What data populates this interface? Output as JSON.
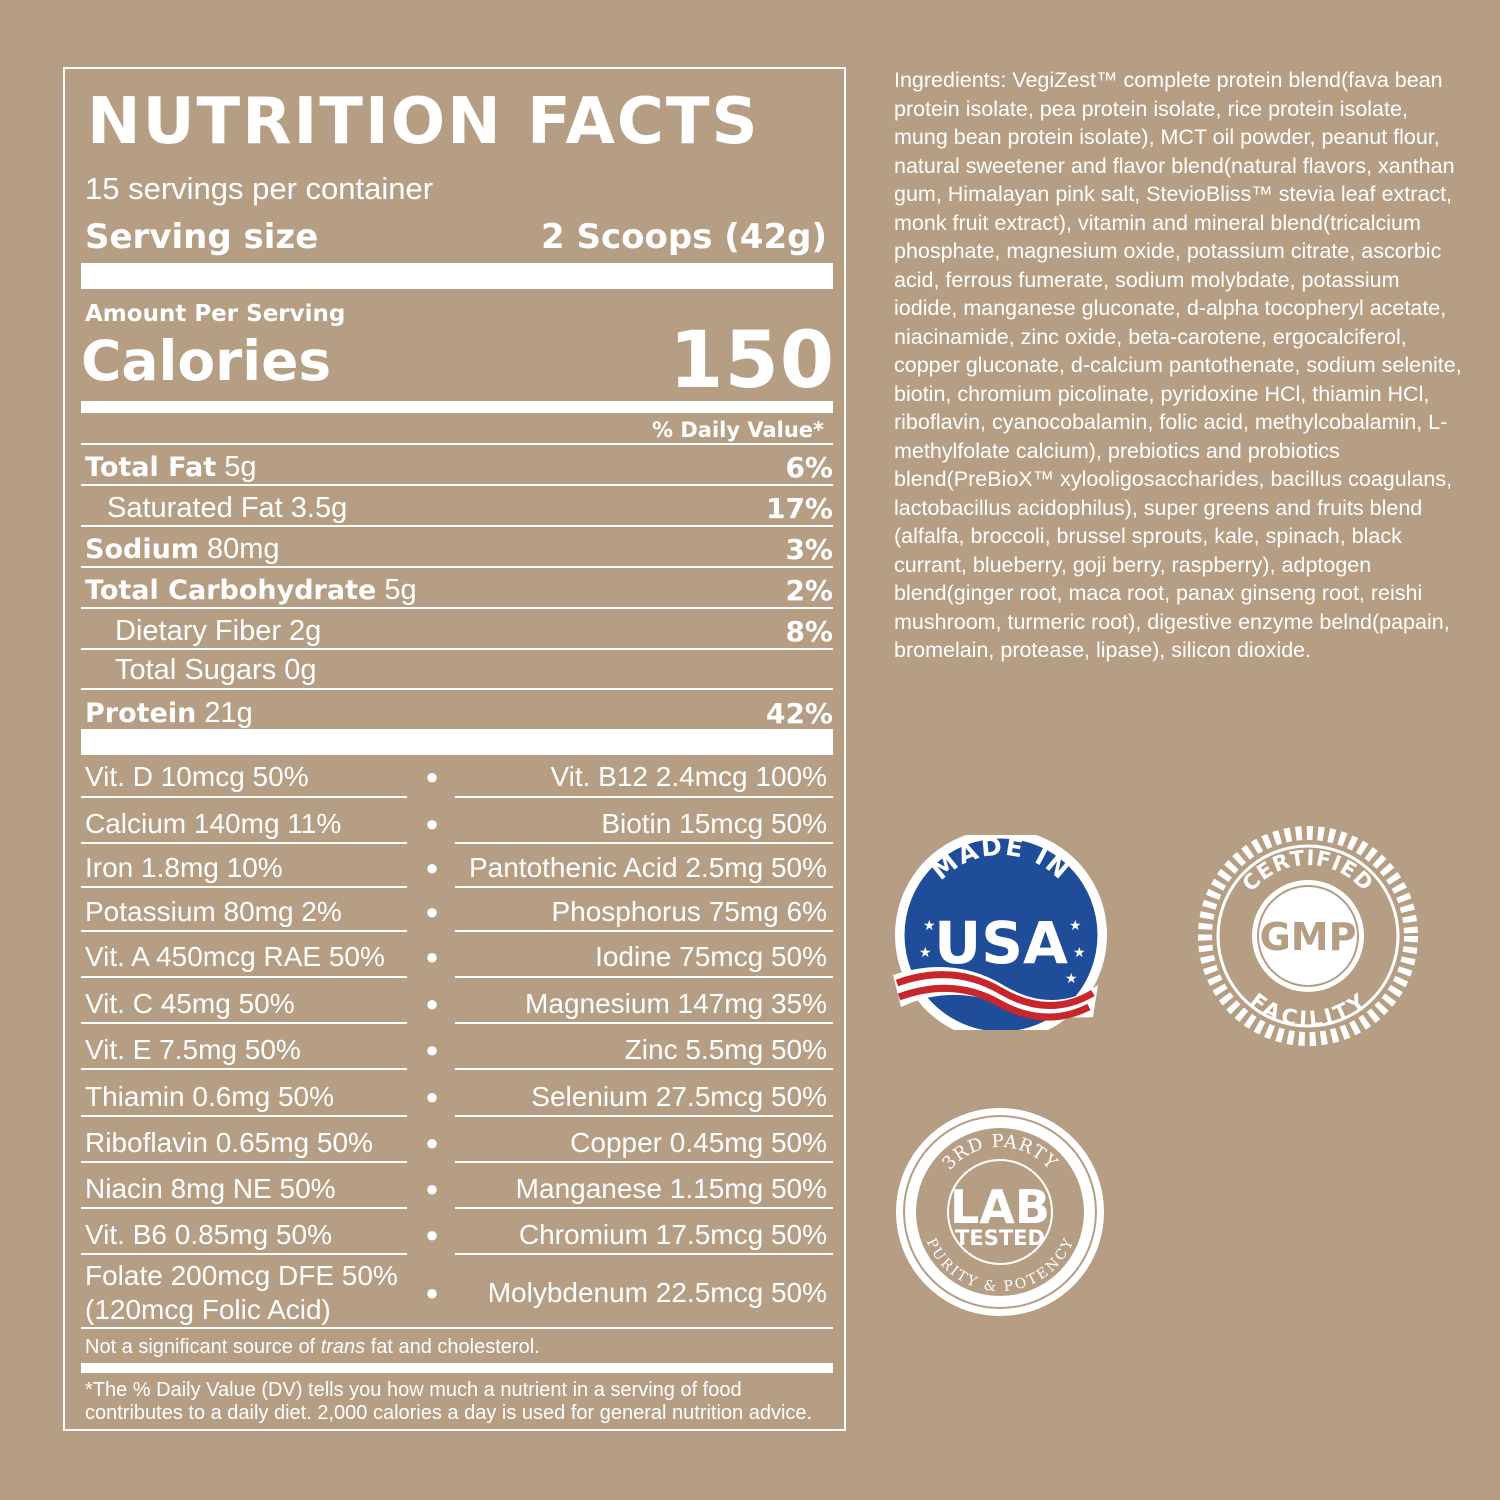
{
  "label": {
    "title": "NUTRITION FACTS",
    "servings_per_container": "15 servings per container",
    "serving_size_label": "Serving size",
    "serving_size_value": "2 Scoops (42g)",
    "amount_per_serving": "Amount Per Serving",
    "calories_label": "Calories",
    "calories_value": "150",
    "daily_value_header": "% Daily Value*",
    "nutrients": [
      {
        "name": "Total Fat",
        "amount": "5g",
        "dv": "6%"
      },
      {
        "name": "Saturated Fat 3.5g",
        "amount": "",
        "dv": "17%"
      },
      {
        "name": "Sodium",
        "amount": "80mg",
        "dv": "3%"
      },
      {
        "name": "Total Carbohydrate",
        "amount": "5g",
        "dv": "2%"
      },
      {
        "name": "Dietary Fiber 2g",
        "amount": "",
        "dv": "8%"
      },
      {
        "name": "Total Sugars 0g",
        "amount": "",
        "dv": ""
      },
      {
        "name": "Protein",
        "amount": "21g",
        "dv": "42%"
      }
    ],
    "vitamins": [
      {
        "left": "Vit. D 10mcg 50%",
        "bullet": "●",
        "right": "Vit. B12 2.4mcg 100%"
      },
      {
        "left": "Calcium 140mg 11%",
        "bullet": "●",
        "right": "Biotin 15mcg 50%"
      },
      {
        "left": "Iron 1.8mg 10%",
        "bullet": "●",
        "right": "Pantothenic Acid 2.5mg 50%"
      },
      {
        "left": "Potassium 80mg 2%",
        "bullet": "●",
        "right": "Phosphorus 75mg 6%"
      },
      {
        "left": "Vit. A 450mcg RAE 50%",
        "bullet": "●",
        "right": "Iodine 75mcg 50%"
      },
      {
        "left": "Vit. C 45mg 50%",
        "bullet": "●",
        "right": "Magnesium 147mg 35%"
      },
      {
        "left": "Vit. E 7.5mg 50%",
        "bullet": "●",
        "right": "Zinc 5.5mg 50%"
      },
      {
        "left": "Thiamin 0.6mg 50%",
        "bullet": "●",
        "right": "Selenium 27.5mcg 50%"
      },
      {
        "left": "Riboflavin 0.65mg 50%",
        "bullet": "●",
        "right": "Copper 0.45mg 50%"
      },
      {
        "left": "Niacin 8mg NE 50%",
        "bullet": "●",
        "right": "Manganese 1.15mg 50%"
      },
      {
        "left": "Vit. B6 0.85mg 50%",
        "bullet": "●",
        "right": "Chromium 17.5mcg 50%"
      }
    ],
    "folate_line1": "Folate 200mcg DFE 50%",
    "folate_line2": "(120mcg Folic Acid)",
    "molybdenum": "Molybdenum 22.5mcg 50%",
    "bullet": "●",
    "trans_before": "Not a significant source of ",
    "trans_italic": "trans",
    "trans_after": " fat and cholesterol.",
    "footnote": "*The % Daily Value (DV) tells you how much a nutrient in a serving of food contributes to a daily diet. 2,000 calories a day is used for general nutrition advice."
  },
  "ingredients": "Ingredients: VegiZest™ complete protein blend(fava bean protein isolate, pea protein isolate, rice protein isolate, mung bean protein isolate), MCT oil powder, peanut flour, natural sweetener and flavor blend(natural flavors, xanthan gum, Himalayan pink salt, StevioBliss™ stevia leaf extract, monk fruit extract), vitamin and mineral blend(tricalcium phosphate, magnesium oxide, potassium citrate, ascorbic acid, ferrous fumerate, sodium molybdate, potassium iodide, manganese gluconate, d-alpha tocopheryl acetate, niacinamide, zinc oxide, beta-carotene, ergocalciferol, copper gluconate, d-calcium pantothenate, sodium selenite, biotin, chromium picolinate, pyridoxine HCl, thiamin HCl, riboflavin, cyanocobalamin, folic acid, methylcobalamin, L-methylfolate calcium), prebiotics and probiotics blend(PreBioX™ xylooligosaccharides, bacillus coagulans, lactobacillus acidophilus), super greens and fruits blend (alfalfa, broccoli, brussel sprouts, kale, spinach, black currant, blueberry, goji berry, raspberry), adptogen blend(ginger root, maca root, panax ginseng root, reishi mushroom, turmeric root), digestive enzyme belnd(papain, bromelain, protease, lipase), silicon dioxide.",
  "badges": {
    "usa": {
      "top": "MADE IN",
      "main": "USA"
    },
    "gmp": {
      "top": "CERTIFIED",
      "main": "GMP",
      "bottom": "FACILITY"
    },
    "lab": {
      "top": "3RD PARTY",
      "main1": "LAB",
      "main2": "TESTED",
      "bottom": "PURITY & POTENCY"
    }
  },
  "colors": {
    "background": "#b59e84",
    "text": "#ffffff",
    "usa_blue": "#1f4d9a",
    "usa_red": "#c8262c"
  }
}
